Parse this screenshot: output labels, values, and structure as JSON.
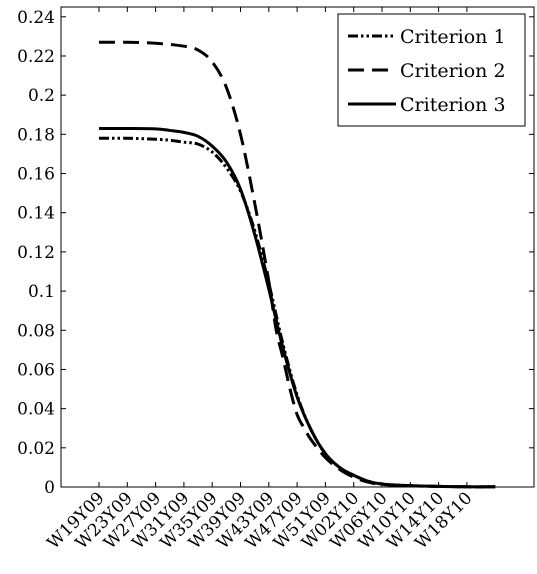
{
  "chart_data": {
    "type": "line",
    "title": "",
    "xlabel": "",
    "ylabel": "",
    "categories": [
      "W19Y09",
      "W23Y09",
      "W27Y09",
      "W31Y09",
      "W35Y09",
      "W39Y09",
      "W43Y09",
      "W47Y09",
      "W51Y09",
      "W02Y10",
      "W06Y10",
      "W10Y10",
      "W14Y10",
      "W18Y10"
    ],
    "ylim": [
      0,
      0.245
    ],
    "yticks": [
      0,
      0.02,
      0.04,
      0.06,
      0.08,
      0.1,
      0.12,
      0.14,
      0.16,
      0.18,
      0.2,
      0.22,
      0.24
    ],
    "ytick_labels": [
      "0",
      "0.02",
      "0.04",
      "0.06",
      "0.08",
      "0.1",
      "0.12",
      "0.14",
      "0.16",
      "0.18",
      "0.2",
      "0.22",
      "0.24"
    ],
    "grid": false,
    "legend_position": "top-right",
    "series": [
      {
        "name": "Criterion 1",
        "dash": "dash-dot-dot",
        "x": [
          0,
          1,
          2,
          2.5,
          3,
          3.5,
          4,
          4.5,
          5,
          5.5,
          6,
          6.5,
          7,
          7.5,
          8,
          8.5,
          9,
          9.5,
          10,
          11,
          12,
          13,
          14
        ],
        "values": [
          0.178,
          0.178,
          0.1775,
          0.177,
          0.176,
          0.175,
          0.171,
          0.163,
          0.151,
          0.131,
          0.104,
          0.073,
          0.047,
          0.029,
          0.017,
          0.01,
          0.006,
          0.003,
          0.0015,
          0.0007,
          0.0003,
          0.0001,
          0.0001
        ]
      },
      {
        "name": "Criterion 2",
        "dash": "long-dash",
        "x": [
          0,
          1,
          2,
          3,
          3.5,
          4,
          4.5,
          5,
          5.5,
          6,
          6.25,
          6.5,
          6.75,
          7,
          7.25,
          7.5,
          8,
          8.5,
          9,
          9.5,
          10,
          11,
          12,
          13,
          14
        ],
        "values": [
          0.227,
          0.227,
          0.2265,
          0.225,
          0.223,
          0.217,
          0.204,
          0.18,
          0.145,
          0.105,
          0.081,
          0.066,
          0.05,
          0.037,
          0.03,
          0.024,
          0.015,
          0.009,
          0.005,
          0.0025,
          0.0013,
          0.0006,
          0.0003,
          0.0001,
          0.0001
        ]
      },
      {
        "name": "Criterion 3",
        "dash": "solid",
        "x": [
          0,
          1,
          2,
          2.5,
          3,
          3.5,
          4,
          4.5,
          5,
          5.5,
          6,
          6.5,
          7,
          7.5,
          8,
          8.5,
          9,
          9.5,
          10,
          11,
          12,
          13,
          14
        ],
        "values": [
          0.183,
          0.183,
          0.1828,
          0.182,
          0.181,
          0.179,
          0.174,
          0.166,
          0.152,
          0.129,
          0.101,
          0.071,
          0.046,
          0.029,
          0.017,
          0.01,
          0.006,
          0.003,
          0.0015,
          0.0007,
          0.0003,
          0.0001,
          0.0001
        ]
      }
    ]
  }
}
